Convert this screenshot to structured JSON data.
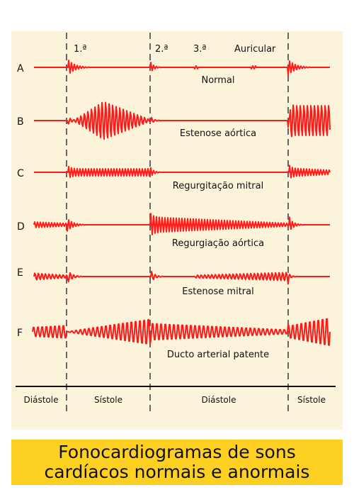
{
  "sound_labels": {
    "s1": "1.ª",
    "s2": "2.ª",
    "s3": "3.ª",
    "atrial": "Auricular"
  },
  "rows": [
    {
      "letter": "A",
      "name": "Normal"
    },
    {
      "letter": "B",
      "name": "Estenose aórtica"
    },
    {
      "letter": "C",
      "name": "Regurgitação mitral"
    },
    {
      "letter": "D",
      "name": "Regurgiação aórtica"
    },
    {
      "letter": "E",
      "name": "Estenose mitral"
    },
    {
      "letter": "F",
      "name": "Ducto arterial patente"
    }
  ],
  "phases": [
    "Diástole",
    "Sístole",
    "Diástole",
    "Sístole"
  ],
  "caption": {
    "line1": "Fonocardiogramas de sons",
    "line2": "cardíacos normais e anormais"
  },
  "colors": {
    "trace": "#ff1a1a",
    "panel": "#fbf4db",
    "caption_bg": "#fdd022"
  }
}
